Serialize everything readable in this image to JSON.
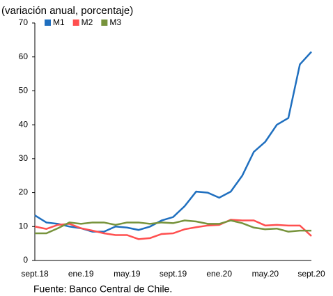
{
  "chart_data": {
    "type": "line",
    "subtitle": "(variación anual, porcentaje)",
    "source": "Fuente: Banco Central de Chile.",
    "categories": [
      "sept.18",
      null,
      null,
      null,
      "ene.19",
      null,
      null,
      null,
      "may.19",
      null,
      null,
      null,
      "sept.19",
      null,
      null,
      null,
      "ene.20",
      null,
      null,
      null,
      "may.20",
      null,
      null,
      null,
      "sept.20"
    ],
    "series": [
      {
        "name": "M1",
        "color": "#1f6fbf",
        "values": [
          13.3,
          11.2,
          10.8,
          10,
          9.5,
          8.5,
          8.5,
          10,
          9.7,
          9,
          10,
          11.8,
          12.8,
          16,
          20.3,
          20,
          18.5,
          20.3,
          25,
          32,
          35,
          40,
          42,
          57.8,
          61.5
        ]
      },
      {
        "name": "M2",
        "color": "#ff4f4f",
        "values": [
          10,
          9.3,
          10.5,
          10.8,
          9.5,
          8.8,
          8,
          7.5,
          7.5,
          6.3,
          6.6,
          7.8,
          8,
          9.2,
          9.8,
          10.3,
          10.5,
          12,
          11.8,
          11.8,
          10.3,
          10.5,
          10.3,
          10.3,
          7.2
        ]
      },
      {
        "name": "M3",
        "color": "#77933c",
        "values": [
          8,
          8,
          9.5,
          11.2,
          10.8,
          11.2,
          11.2,
          10.5,
          11.2,
          11.2,
          10.8,
          11.2,
          11,
          11.8,
          11.5,
          10.8,
          10.8,
          11.8,
          11,
          9.7,
          9.2,
          9.4,
          8.5,
          8.8,
          8.8
        ]
      }
    ],
    "ylim": [
      0,
      70
    ],
    "yticks": [
      0,
      10,
      20,
      30,
      40,
      50,
      60,
      70
    ],
    "grid": false,
    "legend": "top-left"
  }
}
